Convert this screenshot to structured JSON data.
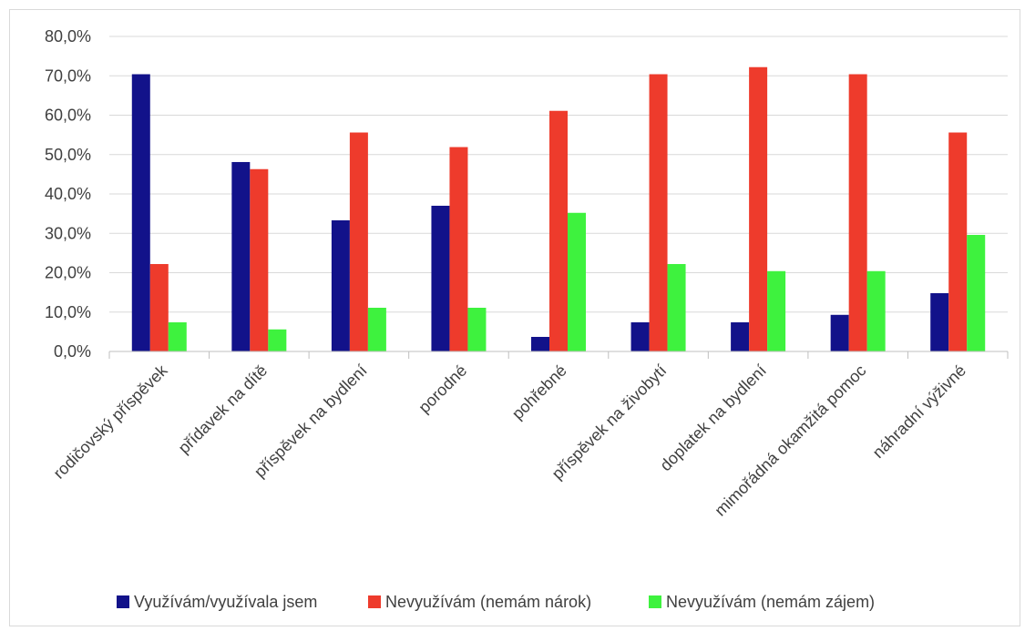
{
  "chart_data": {
    "type": "bar",
    "categories": [
      "rodičovský příspěvek",
      "přídavek na dítě",
      "příspěvek na bydlení",
      "porodné",
      "pohřebné",
      "příspěvek na živobytí",
      "doplatek na bydlení",
      "mimořádná okamžitá pomoc",
      "náhradní výživné"
    ],
    "series": [
      {
        "name": "Využívám/využívala jsem",
        "color": "#12128a",
        "values": [
          70.4,
          48.1,
          33.3,
          37.0,
          3.7,
          7.4,
          7.4,
          9.3,
          14.8
        ]
      },
      {
        "name": "Nevyužívám (nemám nárok)",
        "color": "#ee3b2c",
        "values": [
          22.2,
          46.3,
          55.6,
          51.9,
          61.1,
          70.4,
          72.2,
          70.4,
          55.6
        ]
      },
      {
        "name": "Nevyužívám (nemám zájem)",
        "color": "#3ef23e",
        "values": [
          7.4,
          5.6,
          11.1,
          11.1,
          35.2,
          22.2,
          20.4,
          20.4,
          29.6
        ]
      }
    ],
    "y_ticks": [
      "0,0%",
      "10,0%",
      "20,0%",
      "30,0%",
      "40,0%",
      "50,0%",
      "60,0%",
      "70,0%",
      "80,0%"
    ],
    "ylim": [
      0,
      80
    ],
    "grid": true,
    "legend_position": "bottom"
  }
}
